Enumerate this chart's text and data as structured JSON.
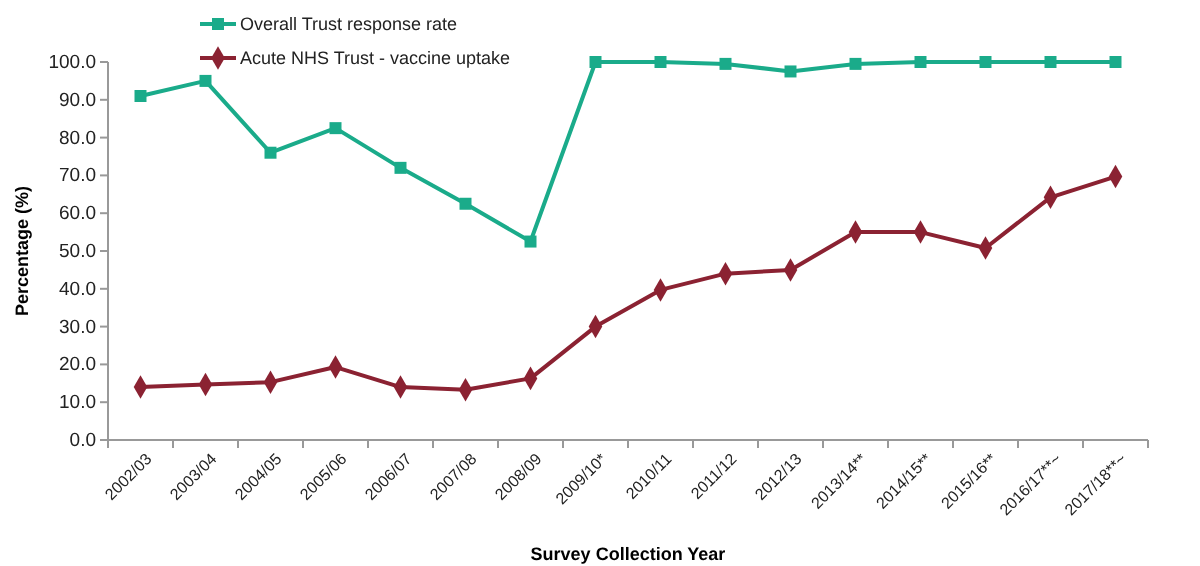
{
  "chart_data": {
    "type": "line",
    "xlabel": "Survey Collection Year",
    "ylabel": "Percentage (%)",
    "categories": [
      "2002/03",
      "2003/04",
      "2004/05",
      "2005/06",
      "2006/07",
      "2007/08",
      "2008/09",
      "2009/10*",
      "2010/11",
      "2011/12",
      "2012/13",
      "2013/14**",
      "2014/15**",
      "2015/16**",
      "2016/17**~",
      "2017/18**~"
    ],
    "series": [
      {
        "name": "Overall Trust response rate",
        "color": "#1aab8a",
        "marker": "square",
        "values": [
          91,
          95,
          76,
          82.5,
          72,
          62.5,
          52.5,
          100,
          100,
          99.5,
          97.5,
          99.5,
          100,
          100,
          100,
          100
        ]
      },
      {
        "name": "Acute NHS Trust - vaccine uptake",
        "color": "#8b2232",
        "marker": "diamond",
        "values": [
          14,
          14.7,
          15.3,
          19.3,
          14,
          13.3,
          16.3,
          30,
          39.7,
          44,
          45,
          55,
          55,
          50.8,
          64.2,
          69.7
        ]
      }
    ],
    "ylim": [
      0,
      100
    ],
    "yticks": [
      {
        "value": 0,
        "label": "0.0"
      },
      {
        "value": 10,
        "label": "10.0"
      },
      {
        "value": 20,
        "label": "20.0"
      },
      {
        "value": 30,
        "label": "30.0"
      },
      {
        "value": 40,
        "label": "40.0"
      },
      {
        "value": 50,
        "label": "50.0"
      },
      {
        "value": 60,
        "label": "60.0"
      },
      {
        "value": 70,
        "label": "70.0"
      },
      {
        "value": 80,
        "label": "80.0"
      },
      {
        "value": 90,
        "label": "90.0"
      },
      {
        "value": 100,
        "label": "100.0"
      }
    ],
    "grid": false,
    "legend": "top",
    "line_style": "solid"
  }
}
